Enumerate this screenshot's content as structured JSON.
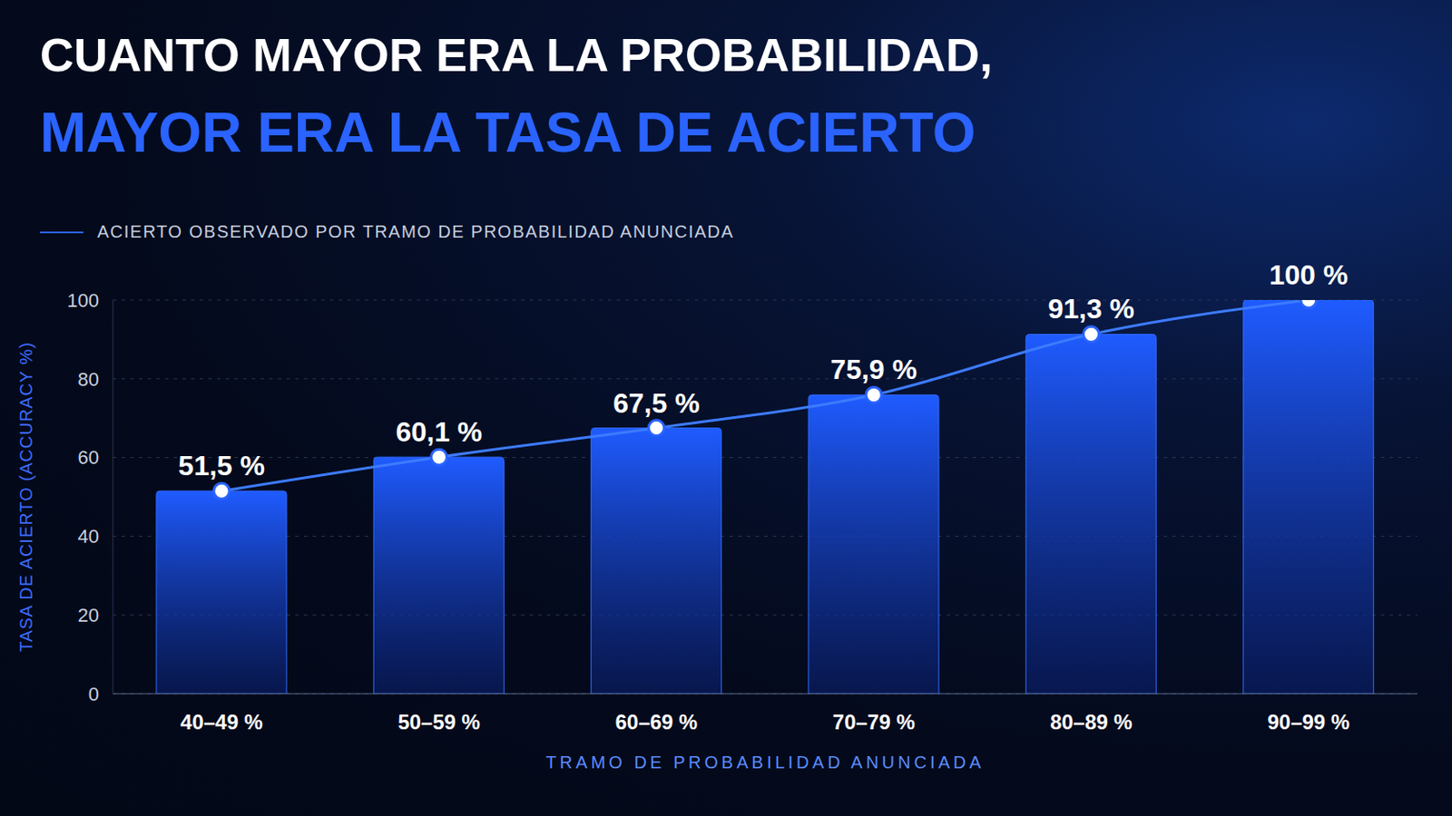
{
  "chart_data": {
    "type": "bar",
    "title": "CUANTO MAYOR ERA LA PROBABILIDAD,",
    "subtitle": "MAYOR ERA LA TASA DE ACIERTO",
    "caption": "ACIERTO OBSERVADO POR TRAMO DE PROBABILIDAD ANUNCIADA",
    "x_label": "TRAMO DE PROBABILIDAD ANUNCIADA",
    "y_label": "TASA DE ACIERTO (ACCURACY %)",
    "categories": [
      "40–49 %",
      "50–59 %",
      "60–69 %",
      "70–79 %",
      "80–89 %",
      "90–99 %"
    ],
    "values": [
      51.5,
      60.1,
      67.5,
      75.9,
      91.3,
      100
    ],
    "value_labels": [
      "51,5 %",
      "60,1 %",
      "67,5 %",
      "75,9 %",
      "91,3 %",
      "100 %"
    ],
    "color": "#1f5bff",
    "ylim": [
      0,
      100
    ],
    "yticks": [
      0,
      20,
      40,
      60,
      80,
      100
    ],
    "grid": true,
    "data_labels": true
  }
}
